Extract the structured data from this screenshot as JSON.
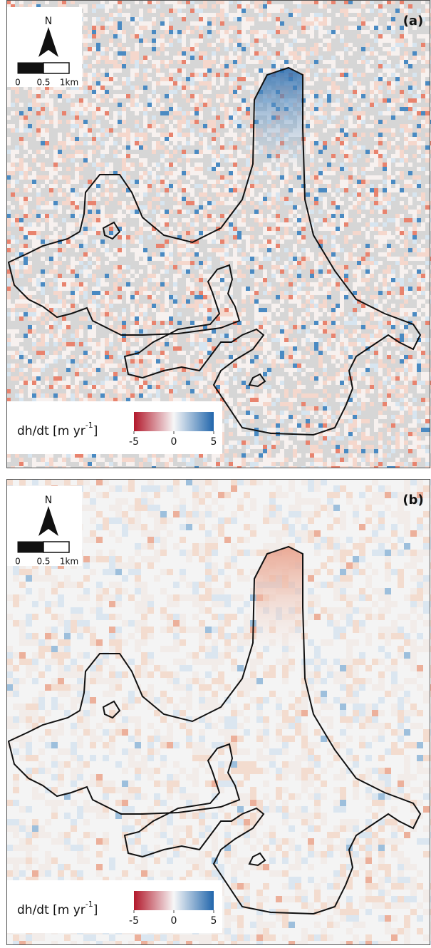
{
  "panels": [
    {
      "label": "(a)",
      "north": "N",
      "scale": [
        "0",
        "0.5",
        "1km"
      ],
      "colorbar": {
        "title": "dh/dt [m yr",
        "exponent": "-1",
        "title_end": "]",
        "lim": [
          -5,
          5
        ],
        "ticks": [
          -5,
          0,
          5
        ],
        "colors": [
          "#b2182b",
          "#f7f7f7",
          "#2166ac"
        ]
      }
    },
    {
      "label": "(b)",
      "north": "N",
      "scale": [
        "0",
        "0.5",
        "1km"
      ],
      "colorbar": {
        "title": "dh/dt [m yr",
        "exponent": "-1",
        "title_end": "]",
        "lim": [
          -5,
          5
        ],
        "ticks": [
          -5,
          0,
          5
        ],
        "colors": [
          "#b2182b",
          "#f7f7f7",
          "#2166ac"
        ]
      }
    }
  ]
}
